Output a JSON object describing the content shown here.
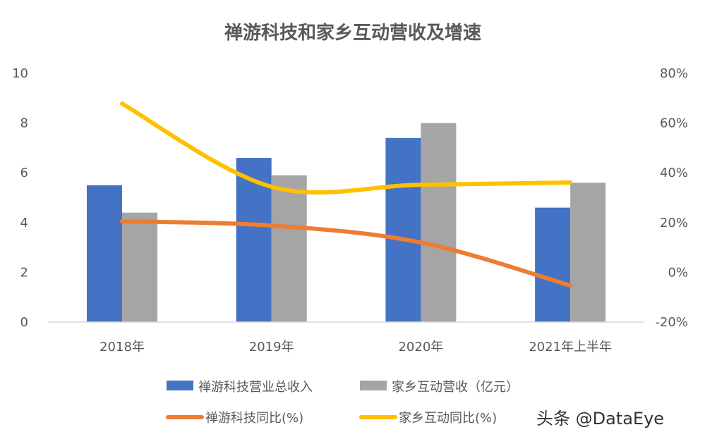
{
  "chart_data": {
    "type": "bar+line",
    "title": "禅游科技和家乡互动营收及增速",
    "categories": [
      "2018年",
      "2019年",
      "2020年",
      "2021年上半年"
    ],
    "y_left": {
      "range": [
        0,
        10
      ],
      "ticks": [
        "0",
        "2",
        "4",
        "6",
        "8",
        "10"
      ]
    },
    "y_right": {
      "range": [
        -20,
        80
      ],
      "ticks": [
        "-20%",
        "0%",
        "20%",
        "40%",
        "60%",
        "80%"
      ]
    },
    "grid": false,
    "legend_position": "bottom",
    "series": [
      {
        "name": "禅游科技营业总收入",
        "kind": "bar",
        "axis": "left",
        "color": "#4472C4",
        "values": [
          5.5,
          6.6,
          7.4,
          4.6
        ]
      },
      {
        "name": "家乡互动营收（亿元）",
        "kind": "bar",
        "axis": "left",
        "color": "#A5A5A5",
        "values": [
          4.4,
          5.9,
          8.0,
          5.6
        ]
      },
      {
        "name": "禅游科技同比(%)",
        "kind": "line",
        "axis": "right",
        "color": "#ED7D31",
        "values": [
          20.5,
          18.8,
          12,
          -5.3
        ]
      },
      {
        "name": "家乡互动同比(%)",
        "kind": "line",
        "axis": "right",
        "color": "#FFC000",
        "values": [
          67.8,
          34.4,
          35.2,
          36.1
        ]
      }
    ]
  },
  "watermark": "头条 @DataEye"
}
